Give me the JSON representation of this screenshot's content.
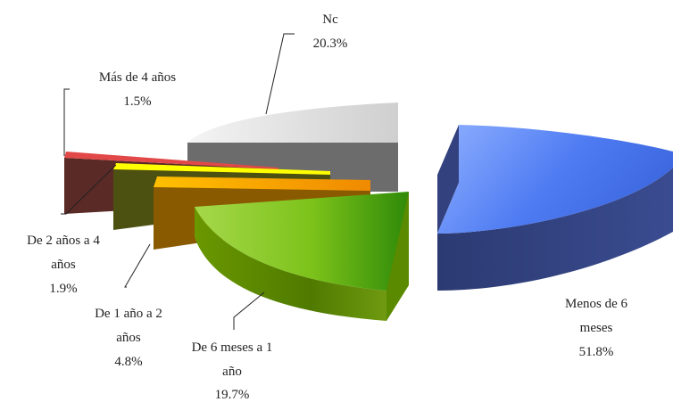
{
  "chart_data": {
    "type": "pie",
    "title": "",
    "three_d": true,
    "exploded": true,
    "slices": [
      {
        "label": "Menos de 6 meses",
        "label_lines": [
          "Menos de 6",
          "meses"
        ],
        "value": 51.8,
        "value_text": "51.8%",
        "color": "#5b86e6"
      },
      {
        "label": "De 6 meses a 1 año",
        "label_lines": [
          "De 6 meses a 1",
          "año"
        ],
        "value": 19.7,
        "value_text": "19.7%",
        "color": "#8cc020"
      },
      {
        "label": "De 1 año a 2 años",
        "label_lines": [
          "De 1 año a 2",
          "años"
        ],
        "value": 4.8,
        "value_text": "4.8%",
        "color": "#f5a500"
      },
      {
        "label": "De 2 años a 4 años",
        "label_lines": [
          "De 2 años a 4",
          "años"
        ],
        "value": 1.9,
        "value_text": "1.9%",
        "color": "#f5f000"
      },
      {
        "label": "Más de 4 años",
        "label_lines": [
          "Más de 4 años"
        ],
        "value": 1.5,
        "value_text": "1.5%",
        "color": "#e04040"
      },
      {
        "label": "Nc",
        "label_lines": [
          "Nc"
        ],
        "value": 20.3,
        "value_text": "20.3%",
        "color": "#d8d8d8"
      }
    ]
  }
}
